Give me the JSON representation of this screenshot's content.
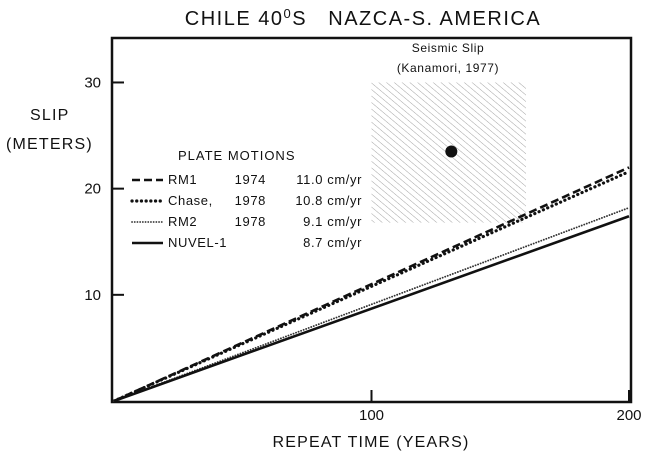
{
  "chart_data": {
    "type": "line",
    "title_left": "CHILE 40",
    "title_sup": "0",
    "title_right": "S   NAZCA-S. AMERICA",
    "ylabel_line1": "SLIP",
    "ylabel_line2": "(METERS)",
    "xlabel": "REPEAT TIME (YEARS)",
    "xlim": [
      0,
      200
    ],
    "ylim": [
      0,
      34
    ],
    "xticks": [
      {
        "value": 100,
        "label": "100"
      },
      {
        "value": 200,
        "label": "200"
      }
    ],
    "yticks": [
      {
        "value": 10,
        "label": "10"
      },
      {
        "value": 20,
        "label": "20"
      },
      {
        "value": 30,
        "label": "30"
      }
    ],
    "grid": false,
    "legend_title": "PLATE MOTIONS",
    "series": [
      {
        "name": "RM1",
        "year": "1974",
        "rate": "11.0 cm/yr",
        "style": "dashed",
        "x": [
          0,
          200
        ],
        "y": [
          0,
          22.0
        ]
      },
      {
        "name": "Chase,",
        "year": "1978",
        "rate": "10.8 cm/yr",
        "style": "dotted-bold",
        "x": [
          0,
          200
        ],
        "y": [
          0,
          21.6
        ]
      },
      {
        "name": "RM2",
        "year": "1978",
        "rate": "9.1 cm/yr",
        "style": "dotted-fine",
        "x": [
          0,
          200
        ],
        "y": [
          0,
          18.2
        ]
      },
      {
        "name": "NUVEL-1",
        "year": "",
        "rate": "8.7 cm/yr",
        "style": "solid",
        "x": [
          0,
          200
        ],
        "y": [
          0,
          17.4
        ]
      }
    ],
    "annotation": {
      "line1": "Seismic Slip",
      "line2": "(Kanamori, 1977)",
      "box_x": [
        100,
        160
      ],
      "box_y": [
        16.8,
        30.0
      ],
      "point": {
        "x": 131,
        "y": 23.5
      }
    }
  }
}
